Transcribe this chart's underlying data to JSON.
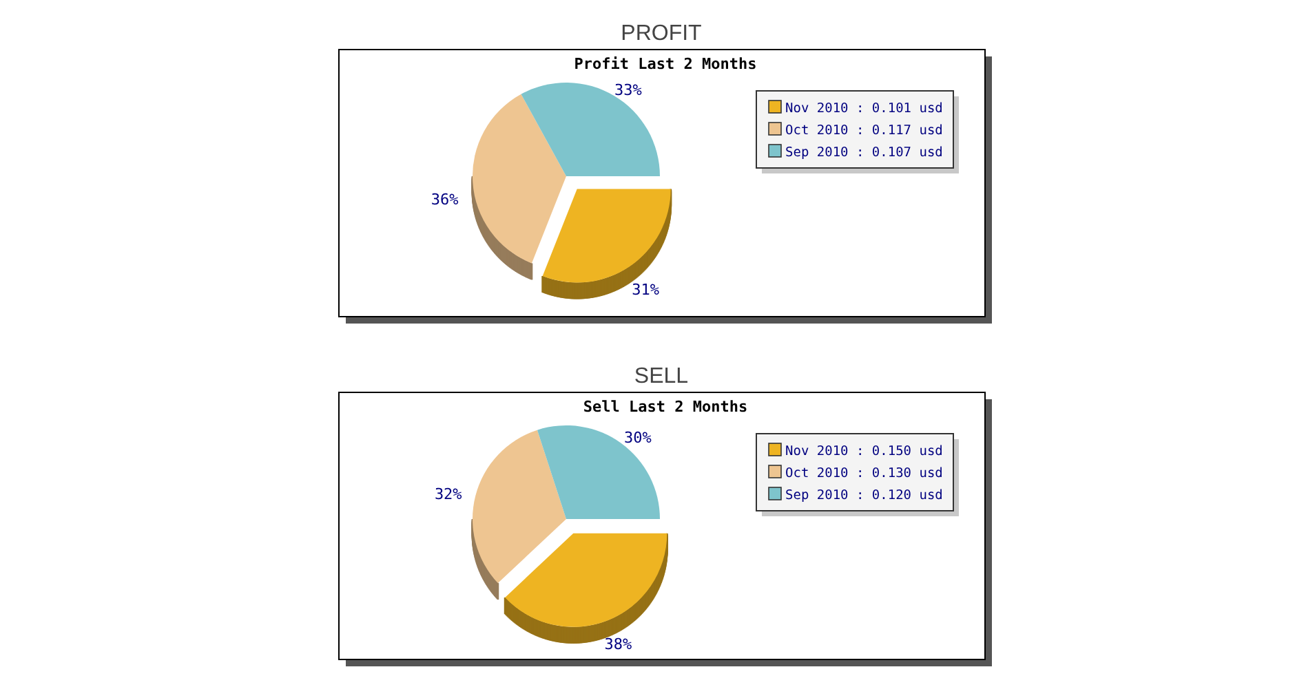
{
  "chart_data": [
    {
      "type": "pie",
      "title": "PROFIT",
      "subtitle": "Profit Last 2 Months",
      "categories": [
        "Nov 2010 : 0.101 usd",
        "Oct 2010 : 0.117 usd",
        "Sep 2010 : 0.107 usd"
      ],
      "values": [
        31,
        36,
        33
      ],
      "colors": [
        "#eeb422",
        "#eec591",
        "#7ec4cc"
      ],
      "value_labels": [
        "31%",
        "36%",
        "33%"
      ],
      "legend": "top right"
    },
    {
      "type": "pie",
      "title": "SELL",
      "subtitle": "Sell Last 2 Months",
      "categories": [
        "Nov 2010 : 0.150 usd",
        "Oct 2010 : 0.130 usd",
        "Sep 2010 : 0.120 usd"
      ],
      "values": [
        38,
        32,
        30
      ],
      "colors": [
        "#eeb422",
        "#eec591",
        "#7ec4cc"
      ],
      "value_labels": [
        "38%",
        "32%",
        "30%"
      ],
      "legend": "top right"
    }
  ]
}
